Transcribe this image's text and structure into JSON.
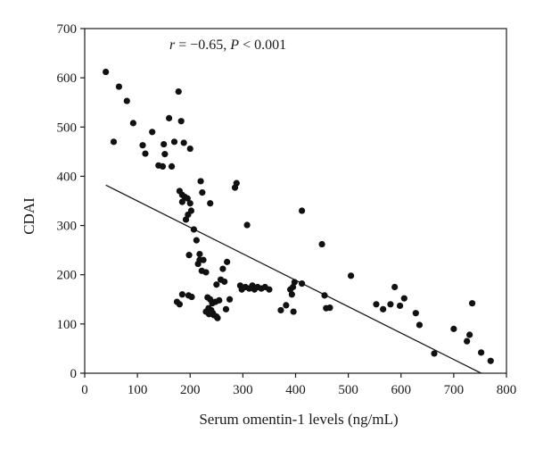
{
  "chart_data": {
    "type": "scatter",
    "xlabel": "Serum omentin-1 levels (ng/mL)",
    "ylabel": "CDAI",
    "xlim": [
      0,
      800
    ],
    "ylim": [
      0,
      700
    ],
    "x_ticks": [
      0,
      100,
      200,
      300,
      400,
      500,
      600,
      700,
      800
    ],
    "y_ticks": [
      0,
      100,
      200,
      300,
      400,
      500,
      600,
      700
    ],
    "grid": false,
    "annotation": {
      "r_part": "r",
      "eq_part": " = −0.65, ",
      "p_part": "P",
      "lt_part": " < 0.001"
    },
    "regression_line": {
      "x": [
        40,
        752
      ],
      "y": [
        382,
        0
      ]
    },
    "points": [
      {
        "x": 40,
        "y": 612
      },
      {
        "x": 65,
        "y": 582
      },
      {
        "x": 80,
        "y": 553
      },
      {
        "x": 92,
        "y": 508
      },
      {
        "x": 55,
        "y": 470
      },
      {
        "x": 110,
        "y": 463
      },
      {
        "x": 115,
        "y": 446
      },
      {
        "x": 128,
        "y": 490
      },
      {
        "x": 140,
        "y": 422
      },
      {
        "x": 148,
        "y": 420
      },
      {
        "x": 150,
        "y": 465
      },
      {
        "x": 152,
        "y": 445
      },
      {
        "x": 160,
        "y": 518
      },
      {
        "x": 165,
        "y": 420
      },
      {
        "x": 170,
        "y": 470
      },
      {
        "x": 178,
        "y": 572
      },
      {
        "x": 183,
        "y": 512
      },
      {
        "x": 188,
        "y": 468
      },
      {
        "x": 200,
        "y": 456
      },
      {
        "x": 180,
        "y": 370
      },
      {
        "x": 185,
        "y": 362
      },
      {
        "x": 190,
        "y": 358
      },
      {
        "x": 195,
        "y": 355
      },
      {
        "x": 200,
        "y": 345
      },
      {
        "x": 202,
        "y": 330
      },
      {
        "x": 196,
        "y": 322
      },
      {
        "x": 192,
        "y": 312
      },
      {
        "x": 185,
        "y": 348
      },
      {
        "x": 220,
        "y": 390
      },
      {
        "x": 223,
        "y": 367
      },
      {
        "x": 238,
        "y": 345
      },
      {
        "x": 288,
        "y": 386
      },
      {
        "x": 285,
        "y": 377
      },
      {
        "x": 308,
        "y": 301
      },
      {
        "x": 207,
        "y": 292
      },
      {
        "x": 212,
        "y": 270
      },
      {
        "x": 198,
        "y": 240
      },
      {
        "x": 218,
        "y": 242
      },
      {
        "x": 218,
        "y": 230
      },
      {
        "x": 225,
        "y": 230
      },
      {
        "x": 215,
        "y": 222
      },
      {
        "x": 222,
        "y": 208
      },
      {
        "x": 230,
        "y": 205
      },
      {
        "x": 270,
        "y": 226
      },
      {
        "x": 262,
        "y": 212
      },
      {
        "x": 258,
        "y": 190
      },
      {
        "x": 265,
        "y": 186
      },
      {
        "x": 250,
        "y": 180
      },
      {
        "x": 185,
        "y": 160
      },
      {
        "x": 197,
        "y": 158
      },
      {
        "x": 203,
        "y": 155
      },
      {
        "x": 175,
        "y": 145
      },
      {
        "x": 180,
        "y": 140
      },
      {
        "x": 233,
        "y": 154
      },
      {
        "x": 238,
        "y": 150
      },
      {
        "x": 242,
        "y": 142
      },
      {
        "x": 248,
        "y": 145
      },
      {
        "x": 255,
        "y": 148
      },
      {
        "x": 235,
        "y": 132
      },
      {
        "x": 240,
        "y": 128
      },
      {
        "x": 243,
        "y": 122
      },
      {
        "x": 245,
        "y": 118
      },
      {
        "x": 250,
        "y": 115
      },
      {
        "x": 252,
        "y": 112
      },
      {
        "x": 236,
        "y": 120
      },
      {
        "x": 230,
        "y": 125
      },
      {
        "x": 268,
        "y": 130
      },
      {
        "x": 275,
        "y": 150
      },
      {
        "x": 295,
        "y": 178
      },
      {
        "x": 298,
        "y": 170
      },
      {
        "x": 305,
        "y": 175
      },
      {
        "x": 312,
        "y": 172
      },
      {
        "x": 318,
        "y": 178
      },
      {
        "x": 322,
        "y": 170
      },
      {
        "x": 328,
        "y": 175
      },
      {
        "x": 335,
        "y": 172
      },
      {
        "x": 342,
        "y": 175
      },
      {
        "x": 350,
        "y": 170
      },
      {
        "x": 372,
        "y": 128
      },
      {
        "x": 382,
        "y": 138
      },
      {
        "x": 390,
        "y": 170
      },
      {
        "x": 393,
        "y": 160
      },
      {
        "x": 395,
        "y": 175
      },
      {
        "x": 398,
        "y": 185
      },
      {
        "x": 396,
        "y": 125
      },
      {
        "x": 412,
        "y": 182
      },
      {
        "x": 412,
        "y": 330
      },
      {
        "x": 450,
        "y": 262
      },
      {
        "x": 455,
        "y": 158
      },
      {
        "x": 458,
        "y": 132
      },
      {
        "x": 465,
        "y": 133
      },
      {
        "x": 505,
        "y": 198
      },
      {
        "x": 553,
        "y": 140
      },
      {
        "x": 566,
        "y": 130
      },
      {
        "x": 580,
        "y": 140
      },
      {
        "x": 588,
        "y": 175
      },
      {
        "x": 598,
        "y": 137
      },
      {
        "x": 606,
        "y": 152
      },
      {
        "x": 628,
        "y": 122
      },
      {
        "x": 635,
        "y": 98
      },
      {
        "x": 663,
        "y": 40
      },
      {
        "x": 700,
        "y": 90
      },
      {
        "x": 725,
        "y": 65
      },
      {
        "x": 730,
        "y": 78
      },
      {
        "x": 735,
        "y": 142
      },
      {
        "x": 752,
        "y": 42
      },
      {
        "x": 770,
        "y": 25
      }
    ]
  }
}
